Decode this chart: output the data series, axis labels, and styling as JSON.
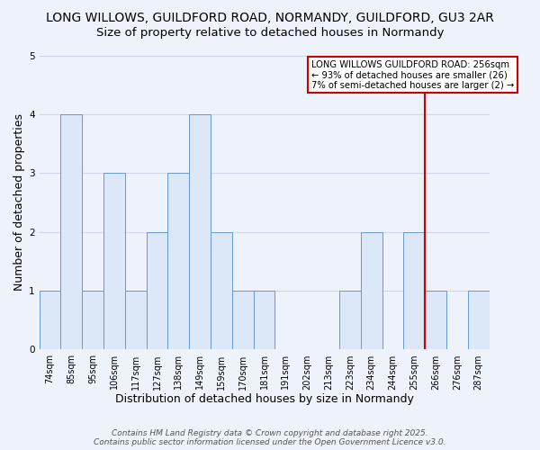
{
  "title1": "LONG WILLOWS, GUILDFORD ROAD, NORMANDY, GUILDFORD, GU3 2AR",
  "title2": "Size of property relative to detached houses in Normandy",
  "xlabel": "Distribution of detached houses by size in Normandy",
  "ylabel": "Number of detached properties",
  "categories": [
    "74sqm",
    "85sqm",
    "95sqm",
    "106sqm",
    "117sqm",
    "127sqm",
    "138sqm",
    "149sqm",
    "159sqm",
    "170sqm",
    "181sqm",
    "191sqm",
    "202sqm",
    "213sqm",
    "223sqm",
    "234sqm",
    "244sqm",
    "255sqm",
    "266sqm",
    "276sqm",
    "287sqm"
  ],
  "values": [
    1,
    4,
    1,
    3,
    1,
    2,
    3,
    4,
    2,
    1,
    1,
    0,
    0,
    0,
    1,
    2,
    0,
    2,
    1,
    0,
    1
  ],
  "bar_face_color": "#dce8f8",
  "bar_edge_color": "#6699cc",
  "vline_x_index": 17,
  "vline_color": "#cc0000",
  "annotation_text": "LONG WILLOWS GUILDFORD ROAD: 256sqm\n← 93% of detached houses are smaller (26)\n7% of semi-detached houses are larger (2) →",
  "annotation_box_color": "#ffffff",
  "annotation_box_edge": "#cc0000",
  "ylim": [
    0,
    5
  ],
  "yticks": [
    0,
    1,
    2,
    3,
    4,
    5
  ],
  "footer1": "Contains HM Land Registry data © Crown copyright and database right 2025.",
  "footer2": "Contains public sector information licensed under the Open Government Licence v3.0.",
  "background_color": "#eef2fb",
  "plot_background": "#eef2fb",
  "grid_color": "#d0d8e8",
  "title_fontsize": 10,
  "subtitle_fontsize": 9.5,
  "tick_fontsize": 7,
  "axis_label_fontsize": 9,
  "footer_fontsize": 6.5
}
